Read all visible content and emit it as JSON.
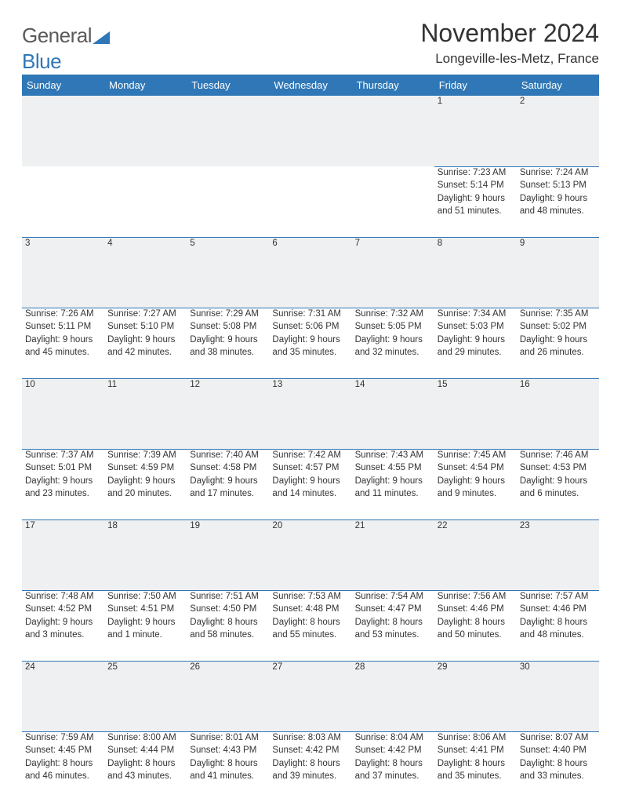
{
  "brand": {
    "general": "General",
    "blue": "Blue"
  },
  "title": "November 2024",
  "location": "Longeville-les-Metz, France",
  "colors": {
    "accent": "#2f77b6",
    "header_bg": "#2f77b6",
    "daynum_bg": "#eef0f1",
    "border": "#2f77b6",
    "text": "#333333",
    "bg": "#ffffff"
  },
  "dayHeaders": [
    "Sunday",
    "Monday",
    "Tuesday",
    "Wednesday",
    "Thursday",
    "Friday",
    "Saturday"
  ],
  "weeks": [
    [
      null,
      null,
      null,
      null,
      null,
      {
        "day": "1",
        "sunrise": "Sunrise: 7:23 AM",
        "sunset": "Sunset: 5:14 PM",
        "dl1": "Daylight: 9 hours",
        "dl2": "and 51 minutes."
      },
      {
        "day": "2",
        "sunrise": "Sunrise: 7:24 AM",
        "sunset": "Sunset: 5:13 PM",
        "dl1": "Daylight: 9 hours",
        "dl2": "and 48 minutes."
      }
    ],
    [
      {
        "day": "3",
        "sunrise": "Sunrise: 7:26 AM",
        "sunset": "Sunset: 5:11 PM",
        "dl1": "Daylight: 9 hours",
        "dl2": "and 45 minutes."
      },
      {
        "day": "4",
        "sunrise": "Sunrise: 7:27 AM",
        "sunset": "Sunset: 5:10 PM",
        "dl1": "Daylight: 9 hours",
        "dl2": "and 42 minutes."
      },
      {
        "day": "5",
        "sunrise": "Sunrise: 7:29 AM",
        "sunset": "Sunset: 5:08 PM",
        "dl1": "Daylight: 9 hours",
        "dl2": "and 38 minutes."
      },
      {
        "day": "6",
        "sunrise": "Sunrise: 7:31 AM",
        "sunset": "Sunset: 5:06 PM",
        "dl1": "Daylight: 9 hours",
        "dl2": "and 35 minutes."
      },
      {
        "day": "7",
        "sunrise": "Sunrise: 7:32 AM",
        "sunset": "Sunset: 5:05 PM",
        "dl1": "Daylight: 9 hours",
        "dl2": "and 32 minutes."
      },
      {
        "day": "8",
        "sunrise": "Sunrise: 7:34 AM",
        "sunset": "Sunset: 5:03 PM",
        "dl1": "Daylight: 9 hours",
        "dl2": "and 29 minutes."
      },
      {
        "day": "9",
        "sunrise": "Sunrise: 7:35 AM",
        "sunset": "Sunset: 5:02 PM",
        "dl1": "Daylight: 9 hours",
        "dl2": "and 26 minutes."
      }
    ],
    [
      {
        "day": "10",
        "sunrise": "Sunrise: 7:37 AM",
        "sunset": "Sunset: 5:01 PM",
        "dl1": "Daylight: 9 hours",
        "dl2": "and 23 minutes."
      },
      {
        "day": "11",
        "sunrise": "Sunrise: 7:39 AM",
        "sunset": "Sunset: 4:59 PM",
        "dl1": "Daylight: 9 hours",
        "dl2": "and 20 minutes."
      },
      {
        "day": "12",
        "sunrise": "Sunrise: 7:40 AM",
        "sunset": "Sunset: 4:58 PM",
        "dl1": "Daylight: 9 hours",
        "dl2": "and 17 minutes."
      },
      {
        "day": "13",
        "sunrise": "Sunrise: 7:42 AM",
        "sunset": "Sunset: 4:57 PM",
        "dl1": "Daylight: 9 hours",
        "dl2": "and 14 minutes."
      },
      {
        "day": "14",
        "sunrise": "Sunrise: 7:43 AM",
        "sunset": "Sunset: 4:55 PM",
        "dl1": "Daylight: 9 hours",
        "dl2": "and 11 minutes."
      },
      {
        "day": "15",
        "sunrise": "Sunrise: 7:45 AM",
        "sunset": "Sunset: 4:54 PM",
        "dl1": "Daylight: 9 hours",
        "dl2": "and 9 minutes."
      },
      {
        "day": "16",
        "sunrise": "Sunrise: 7:46 AM",
        "sunset": "Sunset: 4:53 PM",
        "dl1": "Daylight: 9 hours",
        "dl2": "and 6 minutes."
      }
    ],
    [
      {
        "day": "17",
        "sunrise": "Sunrise: 7:48 AM",
        "sunset": "Sunset: 4:52 PM",
        "dl1": "Daylight: 9 hours",
        "dl2": "and 3 minutes."
      },
      {
        "day": "18",
        "sunrise": "Sunrise: 7:50 AM",
        "sunset": "Sunset: 4:51 PM",
        "dl1": "Daylight: 9 hours",
        "dl2": "and 1 minute."
      },
      {
        "day": "19",
        "sunrise": "Sunrise: 7:51 AM",
        "sunset": "Sunset: 4:50 PM",
        "dl1": "Daylight: 8 hours",
        "dl2": "and 58 minutes."
      },
      {
        "day": "20",
        "sunrise": "Sunrise: 7:53 AM",
        "sunset": "Sunset: 4:48 PM",
        "dl1": "Daylight: 8 hours",
        "dl2": "and 55 minutes."
      },
      {
        "day": "21",
        "sunrise": "Sunrise: 7:54 AM",
        "sunset": "Sunset: 4:47 PM",
        "dl1": "Daylight: 8 hours",
        "dl2": "and 53 minutes."
      },
      {
        "day": "22",
        "sunrise": "Sunrise: 7:56 AM",
        "sunset": "Sunset: 4:46 PM",
        "dl1": "Daylight: 8 hours",
        "dl2": "and 50 minutes."
      },
      {
        "day": "23",
        "sunrise": "Sunrise: 7:57 AM",
        "sunset": "Sunset: 4:46 PM",
        "dl1": "Daylight: 8 hours",
        "dl2": "and 48 minutes."
      }
    ],
    [
      {
        "day": "24",
        "sunrise": "Sunrise: 7:59 AM",
        "sunset": "Sunset: 4:45 PM",
        "dl1": "Daylight: 8 hours",
        "dl2": "and 46 minutes."
      },
      {
        "day": "25",
        "sunrise": "Sunrise: 8:00 AM",
        "sunset": "Sunset: 4:44 PM",
        "dl1": "Daylight: 8 hours",
        "dl2": "and 43 minutes."
      },
      {
        "day": "26",
        "sunrise": "Sunrise: 8:01 AM",
        "sunset": "Sunset: 4:43 PM",
        "dl1": "Daylight: 8 hours",
        "dl2": "and 41 minutes."
      },
      {
        "day": "27",
        "sunrise": "Sunrise: 8:03 AM",
        "sunset": "Sunset: 4:42 PM",
        "dl1": "Daylight: 8 hours",
        "dl2": "and 39 minutes."
      },
      {
        "day": "28",
        "sunrise": "Sunrise: 8:04 AM",
        "sunset": "Sunset: 4:42 PM",
        "dl1": "Daylight: 8 hours",
        "dl2": "and 37 minutes."
      },
      {
        "day": "29",
        "sunrise": "Sunrise: 8:06 AM",
        "sunset": "Sunset: 4:41 PM",
        "dl1": "Daylight: 8 hours",
        "dl2": "and 35 minutes."
      },
      {
        "day": "30",
        "sunrise": "Sunrise: 8:07 AM",
        "sunset": "Sunset: 4:40 PM",
        "dl1": "Daylight: 8 hours",
        "dl2": "and 33 minutes."
      }
    ]
  ]
}
